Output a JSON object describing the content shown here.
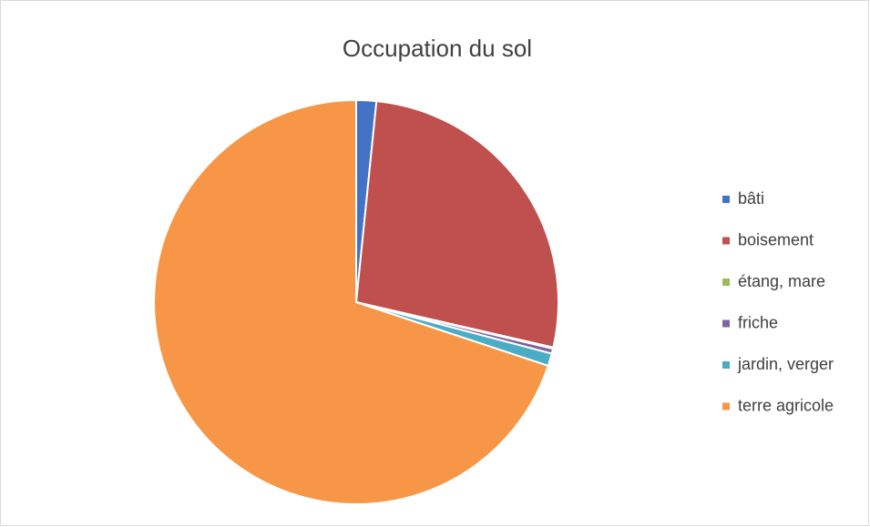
{
  "chart_data": {
    "type": "pie",
    "title": "Occupation du sol",
    "categories": [
      "bâti",
      "boisement",
      "étang, mare",
      "friche",
      "jardin, verger",
      "terre agricole"
    ],
    "values": [
      1.6,
      27,
      0.1,
      0.4,
      1.0,
      69.9
    ],
    "colors": [
      "#4472c4",
      "#c0504d",
      "#9bbb59",
      "#8064a2",
      "#4bacc6",
      "#f79646"
    ],
    "legend": "right"
  }
}
